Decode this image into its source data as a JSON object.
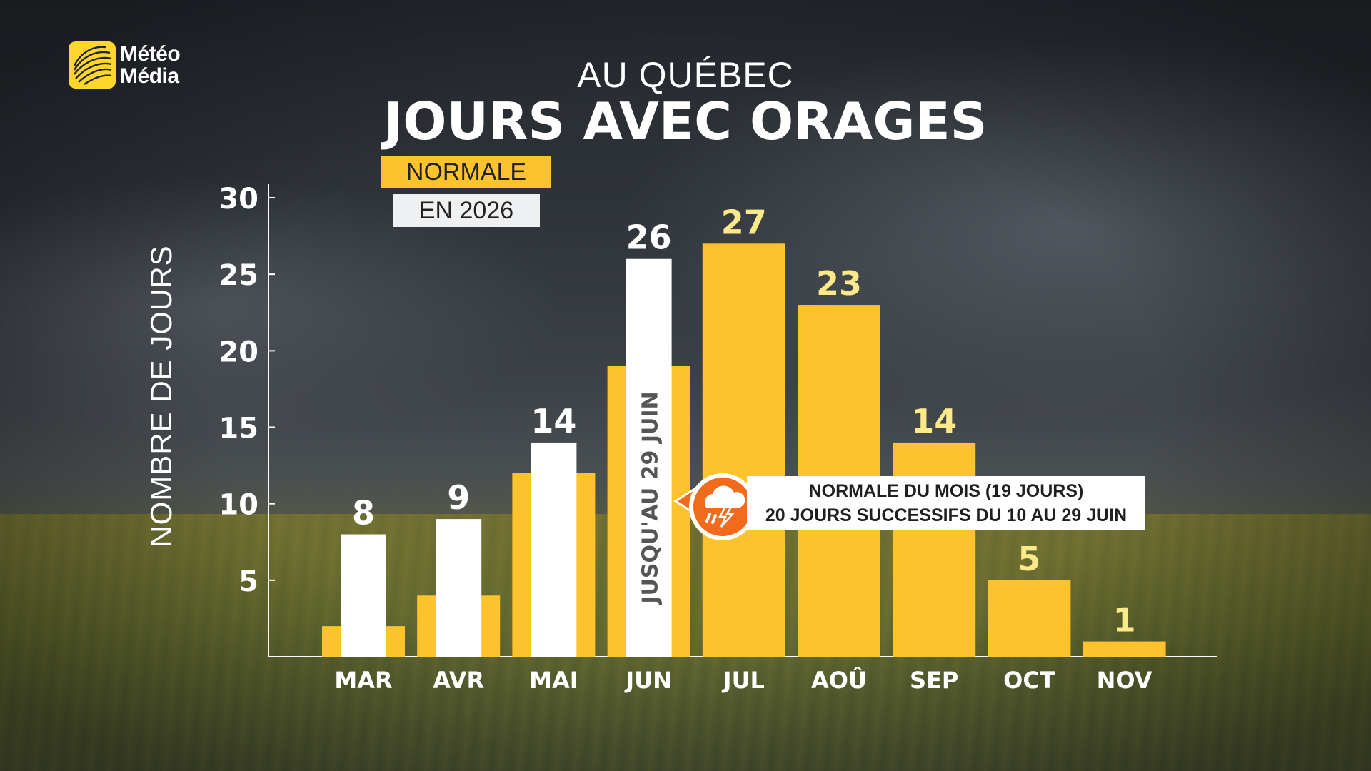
{
  "brand": {
    "line1": "Météo",
    "line2": "Média",
    "logo_color": "#ffd62b"
  },
  "title": {
    "top": "AU QUÉBEC",
    "main": "JOURS AVEC ORAGES"
  },
  "legend": {
    "normal_label": "NORMALE",
    "current_label": "EN 2026",
    "normal_color": "#fcc32c",
    "current_color": "#ffffff"
  },
  "callout": {
    "line1": "NORMALE DU MOIS (19 JOURS)",
    "line2": "20 JOURS SUCCESSIFS DU 10 AU 29 JUIN",
    "icon": "thunderstorm-icon",
    "icon_color": "#f26b1d"
  },
  "chart_data": {
    "type": "bar",
    "title": "JOURS AVEC ORAGES",
    "subtitle": "AU QUÉBEC",
    "ylabel": "NOMBRE DE JOURS",
    "xlabel": "",
    "ylim": [
      0,
      30
    ],
    "yticks": [
      5,
      10,
      15,
      20,
      25,
      30
    ],
    "grid": false,
    "legend_position": "top-left",
    "categories": [
      "MAR",
      "AVR",
      "MAI",
      "JUN",
      "JUL",
      "AOÛ",
      "SEP",
      "OCT",
      "NOV"
    ],
    "series": [
      {
        "name": "NORMALE",
        "color": "#fcc32c",
        "values": [
          2,
          4,
          12,
          19,
          27,
          23,
          14,
          5,
          1
        ]
      },
      {
        "name": "EN 2026",
        "color": "#ffffff",
        "values": [
          8,
          9,
          14,
          26,
          null,
          null,
          null,
          null,
          null
        ]
      }
    ],
    "data_labels": [
      "8",
      "9",
      "14",
      "26",
      "27",
      "23",
      "14",
      "5",
      "1"
    ],
    "annotations": [
      {
        "category": "JUN",
        "text": "JUSQU'AU 29 JUIN"
      }
    ]
  }
}
